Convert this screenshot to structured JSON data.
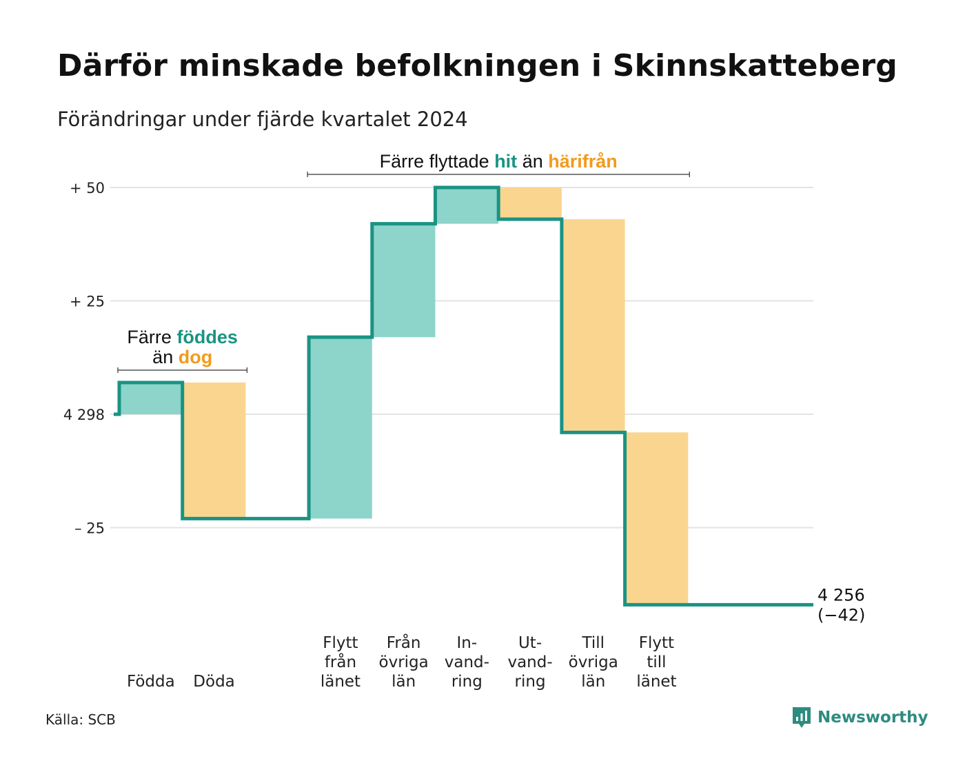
{
  "title": "Därför minskade befolkningen i Skinnskatteberg",
  "subtitle": "Förändringar under fjärde kvartalet 2024",
  "source": "Källa: SCB",
  "brand": {
    "name": "Newsworthy",
    "icon": "newsworthy-logo-icon"
  },
  "colors": {
    "increase_fill": "#8dd4cb",
    "decrease_fill": "#fad58f",
    "step_line": "#1a9383",
    "accent_teal": "#1a9383",
    "accent_orange": "#f29a1d",
    "grid": "#e3e3e3"
  },
  "chart_data": {
    "type": "waterfall",
    "baseline_value": 4298,
    "ylim": [
      -42,
      50
    ],
    "yticks": [
      {
        "value": 50,
        "label": "+ 50"
      },
      {
        "value": 25,
        "label": "+ 25"
      },
      {
        "value": 0,
        "label": "4 298"
      },
      {
        "value": -25,
        "label": "– 25"
      }
    ],
    "steps": [
      {
        "label": [
          "Födda"
        ],
        "change": 7,
        "kind": "increase"
      },
      {
        "label": [
          "Döda"
        ],
        "change": -30,
        "kind": "decrease"
      },
      {
        "label": [],
        "change": 0,
        "kind": "gap"
      },
      {
        "label": [
          "Flytt",
          "från",
          "länet"
        ],
        "change": 40,
        "kind": "increase"
      },
      {
        "label": [
          "Från",
          "övriga",
          "län"
        ],
        "change": 25,
        "kind": "increase"
      },
      {
        "label": [
          "In-",
          "vand-",
          "ring"
        ],
        "change": 8,
        "kind": "increase"
      },
      {
        "label": [
          "Ut-",
          "vand-",
          "ring"
        ],
        "change": -7,
        "kind": "decrease"
      },
      {
        "label": [
          "Till",
          "övriga",
          "län"
        ],
        "change": -47,
        "kind": "decrease"
      },
      {
        "label": [
          "Flytt",
          "till",
          "länet"
        ],
        "change": -38,
        "kind": "decrease"
      },
      {
        "label": [],
        "change": 0,
        "kind": "tail"
      }
    ],
    "end_label": [
      "4 256",
      "(−42)"
    ],
    "annotations": [
      {
        "span": [
          0,
          1
        ],
        "lines": [
          [
            {
              "text": "Färre ",
              "style": "plain"
            },
            {
              "text": "föddes",
              "style": "teal"
            }
          ],
          [
            {
              "text": "än ",
              "style": "plain"
            },
            {
              "text": "dog",
              "style": "orange"
            }
          ]
        ]
      },
      {
        "span": [
          3,
          8
        ],
        "lines": [
          [
            {
              "text": "Färre flyttade ",
              "style": "plain"
            },
            {
              "text": "hit",
              "style": "teal"
            },
            {
              "text": " än ",
              "style": "plain"
            },
            {
              "text": "härifrån",
              "style": "orange"
            }
          ]
        ]
      }
    ]
  }
}
